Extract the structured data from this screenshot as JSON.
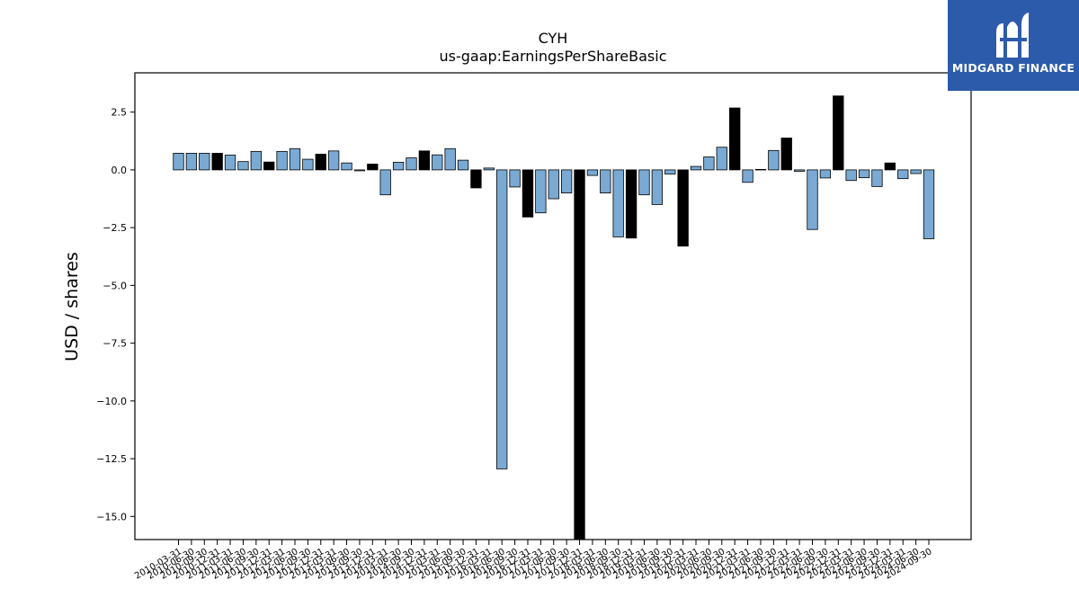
{
  "brand": {
    "name": "MIDGARD FINANCE",
    "colors": {
      "background": "#2d5bab",
      "text": "#ffffff"
    },
    "icon": "midgard-logo-icon"
  },
  "chart_data": {
    "type": "bar",
    "title": "CYH",
    "subtitle": "us-gaap:EarningsPerShareBasic",
    "xlabel": "",
    "ylabel": "USD / shares",
    "ylim": [
      -16.0,
      4.2
    ],
    "yticks": [
      2.5,
      0.0,
      -2.5,
      -5.0,
      -7.5,
      -10.0,
      -12.5,
      -15.0
    ],
    "ytick_labels": [
      "2.5",
      "0.0",
      "−2.5",
      "−5.0",
      "−7.5",
      "−10.0",
      "−12.5",
      "−15.0"
    ],
    "grid": false,
    "legend": "none",
    "colors": {
      "quarterly": "#7aaad4",
      "annual": "#000000",
      "edge": "#000000"
    },
    "categories": [
      "2010-03-31",
      "2010-06-30",
      "2010-09-30",
      "2010-12-31",
      "2011-03-31",
      "2011-06-30",
      "2011-09-30",
      "2011-12-31",
      "2012-03-31",
      "2012-06-30",
      "2012-09-30",
      "2012-12-31",
      "2013-03-31",
      "2013-06-30",
      "2013-09-30",
      "2013-12-31",
      "2014-03-31",
      "2014-06-30",
      "2014-09-30",
      "2014-12-31",
      "2015-03-31",
      "2015-06-30",
      "2015-09-30",
      "2015-12-31",
      "2016-03-31",
      "2016-06-30",
      "2016-09-30",
      "2016-12-31",
      "2017-03-31",
      "2017-06-30",
      "2017-09-30",
      "2017-12-31",
      "2018-03-31",
      "2018-06-30",
      "2018-09-30",
      "2018-12-31",
      "2019-03-31",
      "2019-06-30",
      "2019-09-30",
      "2019-12-31",
      "2020-03-31",
      "2020-06-30",
      "2020-09-30",
      "2020-12-31",
      "2021-03-31",
      "2021-06-30",
      "2021-09-30",
      "2021-12-31",
      "2022-03-31",
      "2022-06-30",
      "2022-09-30",
      "2022-12-31",
      "2023-03-31",
      "2023-06-30",
      "2023-09-30",
      "2023-12-31",
      "2024-03-31",
      "2024-06-30",
      "2024-09-30"
    ],
    "tick_labels": [
      "2010-03-31",
      "2010-06-30",
      "2010-09-30",
      "2010-12-31",
      "2011-03-31",
      "2011-06-30",
      "2011-09-30",
      "2011-12-31",
      "2012-03-31",
      "2012-06-30",
      "2012-09-30",
      "2012-12-31",
      "2013-03-31",
      "2013-06-30",
      "2013-09-30",
      "2013-12-31",
      "2014-03-31",
      "2014-06-30",
      "2014-09-30",
      "2014-12-31",
      "2015-03-31",
      "2015-06-30",
      "2015-09-30",
      "2015-12-31",
      "2016-03-31",
      "2016-06-30",
      "2016-09-30",
      "2016-12-31",
      "2017-03-31",
      "2017-06-30",
      "2017-09-30",
      "2017-12-31",
      "2018-03-31",
      "2018-06-30",
      "2018-09-30",
      "2018-12-31",
      "2019-03-31",
      "2019-06-30",
      "2019-09-30",
      "2019-12-31",
      "2020-03-31",
      "2020-06-30",
      "2020-09-30",
      "2020-12-31",
      "2021-03-31",
      "2021-06-30",
      "2021-09-30",
      "2021-12-31",
      "2022-03-31",
      "2022-06-30",
      "2022-09-30",
      "2022-12-31",
      "2023-03-31",
      "2023-06-30",
      "2023-09-30",
      "2023-12-31",
      "2024-03-31",
      "2024-06-30",
      "2024-09-30"
    ],
    "values": [
      0.72,
      0.72,
      0.72,
      0.72,
      0.64,
      0.36,
      0.8,
      0.34,
      0.8,
      0.92,
      0.46,
      0.68,
      0.82,
      0.3,
      -0.04,
      0.25,
      -1.08,
      0.33,
      0.52,
      0.82,
      0.65,
      0.92,
      0.42,
      -0.78,
      0.08,
      -12.94,
      -0.74,
      -2.04,
      -1.86,
      -1.25,
      -1.0,
      -16.0,
      -0.24,
      -1.0,
      -2.9,
      -2.95,
      -1.08,
      -1.5,
      -0.18,
      -3.3,
      0.15,
      0.56,
      0.98,
      2.68,
      -0.54,
      0.02,
      0.84,
      1.38,
      -0.06,
      -2.58,
      -0.35,
      3.2,
      -0.46,
      -0.34,
      -0.72,
      0.3,
      -0.38,
      -0.16,
      -2.98
    ],
    "annual": [
      false,
      false,
      false,
      true,
      false,
      false,
      false,
      true,
      false,
      false,
      false,
      true,
      false,
      false,
      false,
      true,
      false,
      false,
      false,
      true,
      false,
      false,
      false,
      true,
      false,
      false,
      false,
      true,
      false,
      false,
      false,
      true,
      false,
      false,
      false,
      true,
      false,
      false,
      false,
      true,
      false,
      false,
      false,
      true,
      false,
      false,
      false,
      true,
      false,
      false,
      false,
      true,
      false,
      false,
      false,
      true,
      false,
      false,
      false
    ]
  }
}
